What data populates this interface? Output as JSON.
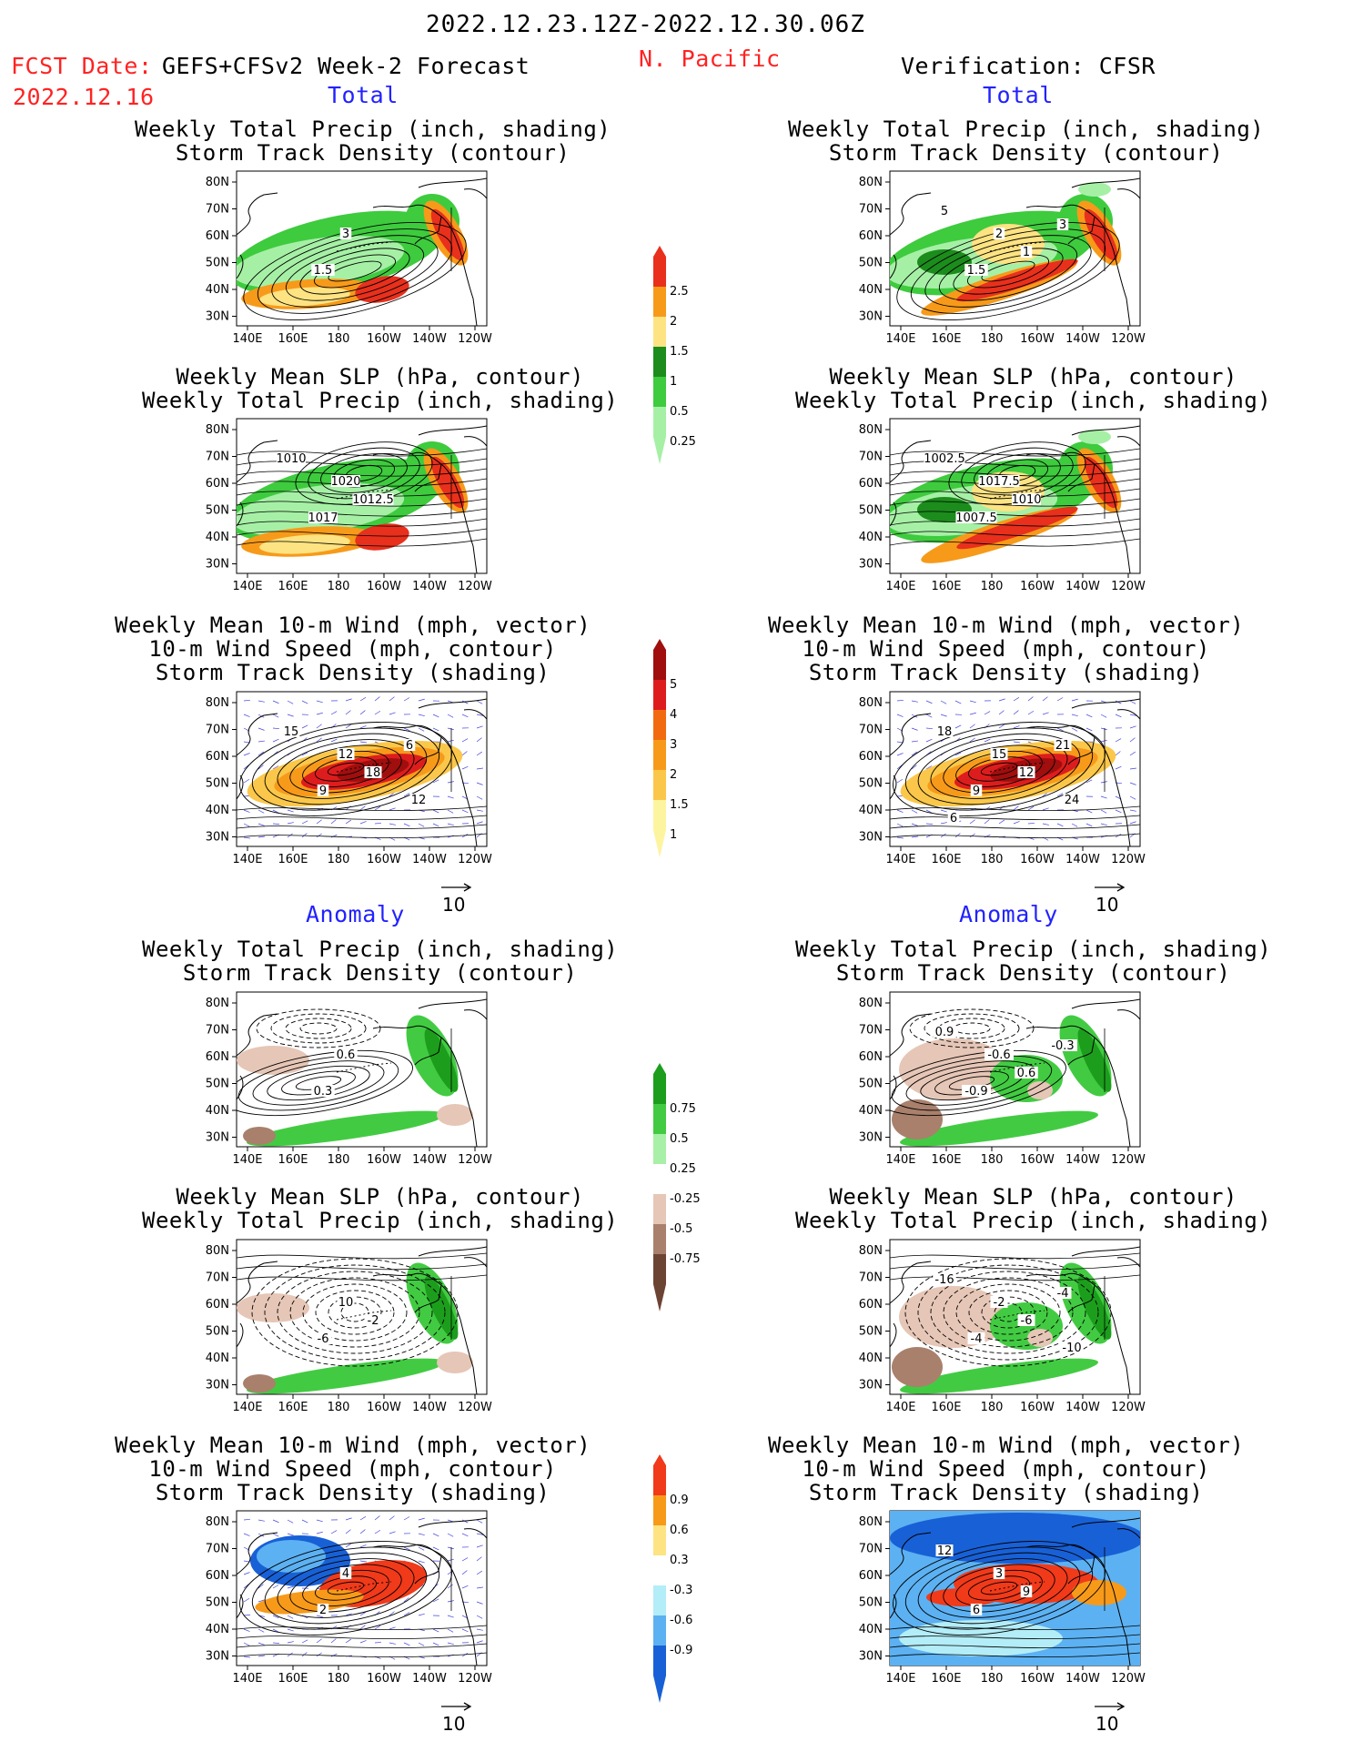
{
  "header": {
    "date_range": "2022.12.23.12Z-2022.12.30.06Z",
    "region": "N. Pacific",
    "fcst_label": "FCST Date:",
    "fcst_model": "GEFS+CFSv2 Week-2 Forecast",
    "fcst_date": "2022.12.16",
    "verification": "Verification: CFSR"
  },
  "sections": {
    "total": "Total",
    "anomaly": "Anomaly"
  },
  "panel_titles": {
    "precip_storm": [
      "Weekly Total Precip (inch, shading)",
      "Storm Track Density (contour)"
    ],
    "slp_precip": [
      "Weekly Mean SLP (hPa, contour)",
      "Weekly Total Precip (inch, shading)"
    ],
    "wind_storm": [
      "Weekly Mean 10-m Wind (mph, vector)",
      "10-m Wind Speed (mph, contour)",
      "Storm Track Density (shading)"
    ]
  },
  "axes": {
    "lat_labels": [
      "80N",
      "70N",
      "60N",
      "50N",
      "40N",
      "30N"
    ],
    "lon_labels": [
      "140E",
      "160E",
      "180",
      "160W",
      "140W",
      "120W"
    ]
  },
  "vector_ref": "10",
  "colorbars": {
    "precip_total": {
      "labels": [
        "2.5",
        "2",
        "1.5",
        "1",
        "0.5",
        "0.25"
      ],
      "colors": [
        "#e8301c",
        "#f79a1a",
        "#fde382",
        "#1c8c1c",
        "#3ecb3e",
        "#a6f0a6"
      ]
    },
    "storm_total": {
      "labels": [
        "5",
        "4",
        "3",
        "2",
        "1.5",
        "1"
      ],
      "colors": [
        "#a00e0e",
        "#dd1d1d",
        "#f26a10",
        "#f79a1a",
        "#fbc74a",
        "#fdf4a0"
      ]
    },
    "precip_anom": {
      "labels": [
        "0.75",
        "0.5",
        "0.25",
        "-0.25",
        "-0.5",
        "-0.75"
      ],
      "colors": [
        "#1c9e1c",
        "#42cb42",
        "#a8efa8",
        "#ffffff",
        "#e6c6b6",
        "#a9806c",
        "#6c4434"
      ]
    },
    "storm_anom": {
      "labels": [
        "0.9",
        "0.6",
        "0.3",
        "-0.3",
        "-0.6",
        "-0.9"
      ],
      "colors": [
        "#f03a1a",
        "#f79a1a",
        "#fde382",
        "#ffffff",
        "#b3edf7",
        "#5cb1f2",
        "#1860d6"
      ]
    }
  },
  "contour_labels": {
    "p1_left": [
      "3",
      "1.5"
    ],
    "p1_right": [
      "2",
      "1.5",
      "1",
      "5",
      "3"
    ],
    "p2_left": [
      "1020",
      "1017",
      "1012.5",
      "1010"
    ],
    "p2_right": [
      "1017.5",
      "1007.5",
      "1010",
      "1002.5"
    ],
    "p3_left": [
      "12",
      "9",
      "18",
      "15",
      "6",
      "12"
    ],
    "p3_right": [
      "15",
      "9",
      "12",
      "18",
      "21",
      "24",
      "6"
    ],
    "p4_left": [
      "0.6",
      "0.3"
    ],
    "p4_right": [
      "-0.6",
      "-0.9",
      "0.6",
      "0.9",
      "-0.3"
    ],
    "p5_left": [
      "10",
      "-6",
      "-2"
    ],
    "p5_right": [
      "-2",
      "-4",
      "-6",
      "-16",
      "-4",
      "-10"
    ],
    "p6_left": [
      "4",
      "2"
    ],
    "p6_right": [
      "3",
      "6",
      "9",
      "12"
    ]
  }
}
